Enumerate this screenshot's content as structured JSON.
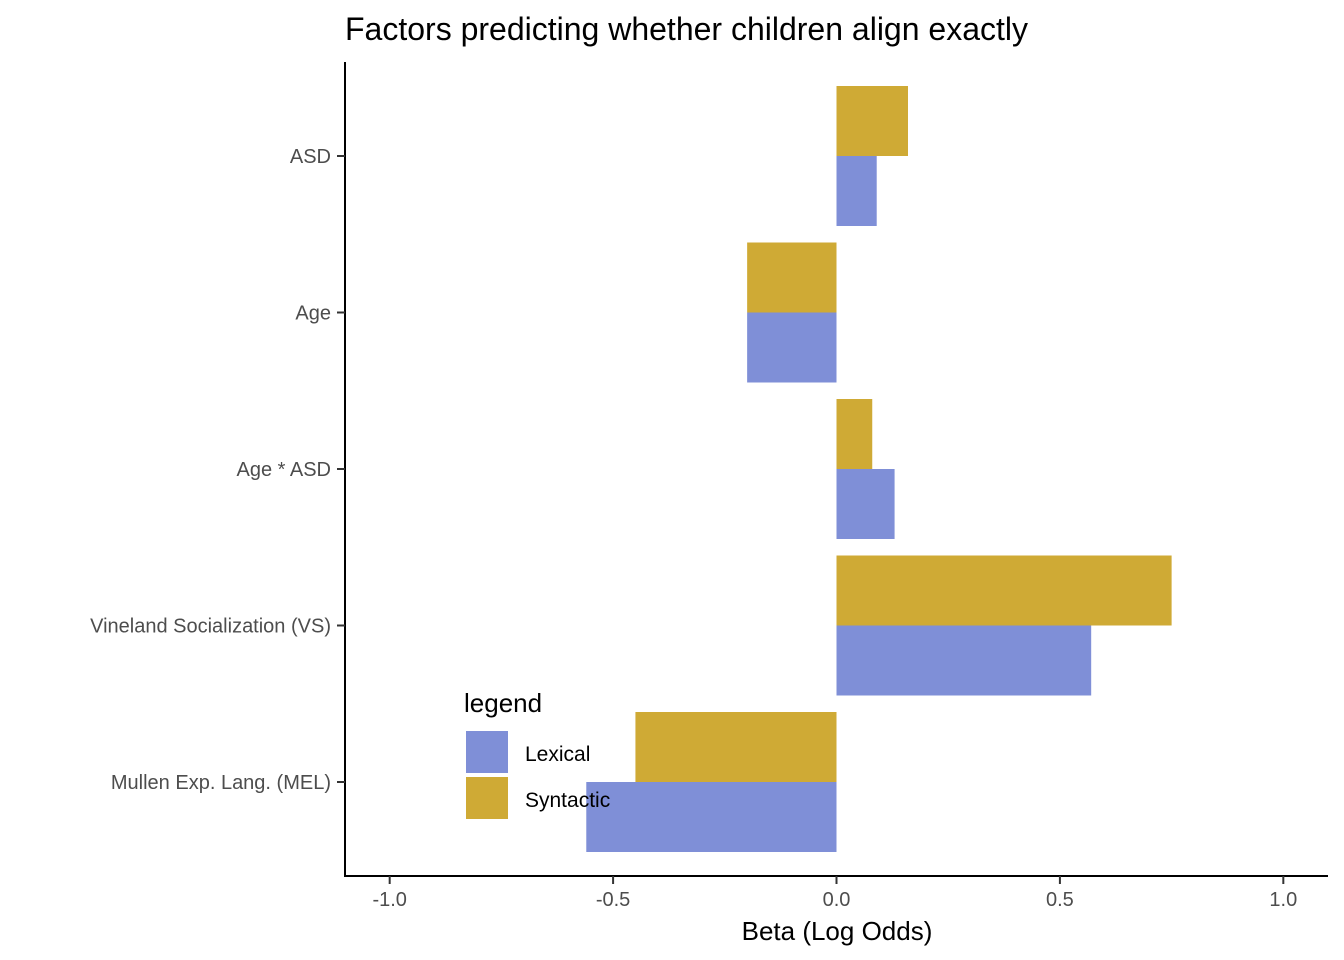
{
  "chart_data": {
    "type": "bar",
    "orientation": "horizontal",
    "title": "Factors predicting whether children align exactly",
    "xlabel": "Beta (Log Odds)",
    "ylabel": "",
    "xlim": [
      -1.1,
      1.1
    ],
    "x_ticks": [
      -1.0,
      -0.5,
      0.0,
      0.5,
      1.0
    ],
    "x_tick_labels": [
      "-1.0",
      "-0.5",
      "0.0",
      "0.5",
      "1.0"
    ],
    "categories": [
      "ASD",
      "Age ",
      "Age * ASD",
      "Vineland Socialization (VS)",
      "Mullen Exp. Lang. (MEL)"
    ],
    "series": [
      {
        "name": "Lexical",
        "color": "#7f8fd7",
        "values": [
          0.09,
          -0.2,
          0.13,
          0.57,
          -0.56
        ]
      },
      {
        "name": "Syntactic",
        "color": "#cfaa35",
        "values": [
          0.16,
          -0.2,
          0.08,
          0.75,
          -0.45
        ]
      }
    ],
    "legend": {
      "title": "legend",
      "position": "inside-bottom-left",
      "entries": [
        "Lexical",
        "Syntactic"
      ]
    },
    "grid": false
  }
}
